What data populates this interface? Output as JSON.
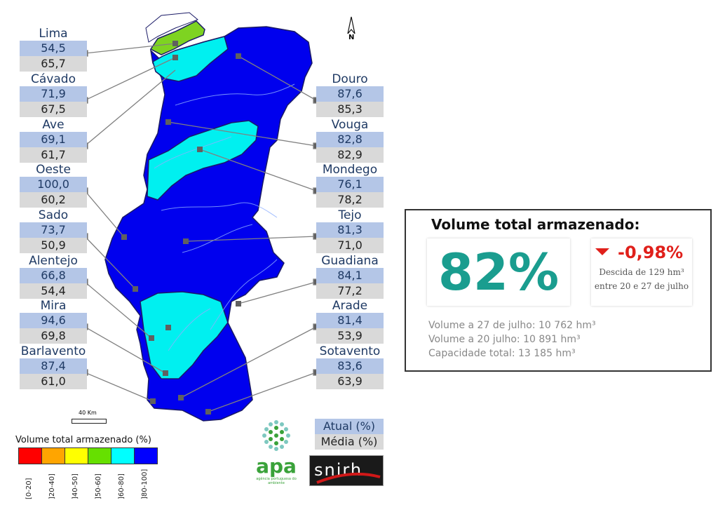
{
  "basins_left": [
    {
      "name": "Lima",
      "actual": "54,5",
      "media": "65,7"
    },
    {
      "name": "Cávado",
      "actual": "71,9",
      "media": "67,5"
    },
    {
      "name": "Ave",
      "actual": "69,1",
      "media": "61,7"
    },
    {
      "name": "Oeste",
      "actual": "100,0",
      "media": "60,2"
    },
    {
      "name": "Sado",
      "actual": "73,7",
      "media": "50,9"
    },
    {
      "name": "Alentejo",
      "actual": "66,8",
      "media": "54,4"
    },
    {
      "name": "Mira",
      "actual": "94,6",
      "media": "69,8"
    },
    {
      "name": "Barlavento",
      "actual": "87,4",
      "media": "61,0"
    }
  ],
  "basins_right": [
    {
      "name": "Douro",
      "actual": "87,6",
      "media": "85,3"
    },
    {
      "name": "Vouga",
      "actual": "82,8",
      "media": "82,9"
    },
    {
      "name": "Mondego",
      "actual": "76,1",
      "media": "78,2"
    },
    {
      "name": "Tejo",
      "actual": "81,3",
      "media": "71,0"
    },
    {
      "name": "Guadiana",
      "actual": "84,1",
      "media": "77,2"
    },
    {
      "name": "Arade",
      "actual": "81,4",
      "media": "53,9"
    },
    {
      "name": "Sotavento",
      "actual": "83,6",
      "media": "63,9"
    }
  ],
  "summary": {
    "title": "Volume total armazenado:",
    "percent": "82%",
    "change": "-0,98%",
    "change_desc_1": "Descida de 129 hm³",
    "change_desc_2": "entre 20 e 27 de julho",
    "vol_now": "Volume a 27 de julho: 10 762 hm³",
    "vol_prev": "Volume a 20 julho: 10 891 hm³",
    "capacity": "Capacidade total: 13 185 hm³",
    "change_color": "#e0201b",
    "percent_color": "#1a9d8f"
  },
  "legend": {
    "title": "Volume total armazenado (%)",
    "classes": [
      {
        "label": "[0-20]",
        "color": "#ff0000"
      },
      {
        "label": "]20-40]",
        "color": "#ffa500"
      },
      {
        "label": "]40-50]",
        "color": "#ffff00"
      },
      {
        "label": "]50-60]",
        "color": "#66e000"
      },
      {
        "label": "]60-80]",
        "color": "#00ffff"
      },
      {
        "label": "]80-100]",
        "color": "#0000ff"
      }
    ]
  },
  "key": {
    "actual": "Atual (%)",
    "media": "Média (%)"
  },
  "scale": {
    "label": "40 Km"
  },
  "north": {
    "label": "N"
  },
  "logos": {
    "apa": "apa",
    "apa_sub": "agência portuguesa do ambiente",
    "snirh": "snirh"
  }
}
